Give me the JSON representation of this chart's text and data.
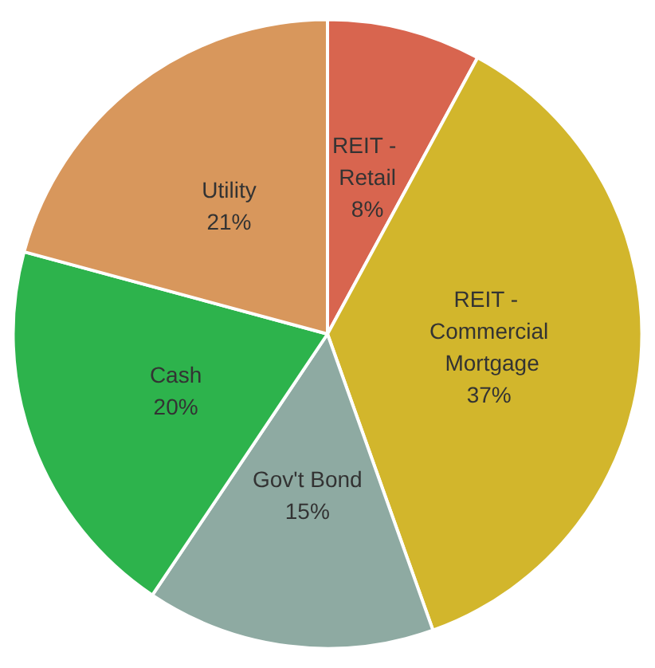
{
  "chart_data": {
    "type": "pie",
    "categories": [
      "REIT - Retail",
      "REIT - Commercial Mortgage",
      "Gov't Bond",
      "Cash",
      "Utility"
    ],
    "values": [
      8,
      37,
      15,
      20,
      21
    ],
    "value_labels": [
      "8%",
      "37%",
      "15%",
      "20%",
      "21%"
    ],
    "colors": [
      "#d8654f",
      "#d2b62c",
      "#8eaaa2",
      "#2db34c",
      "#d8975c"
    ],
    "legend": false
  }
}
